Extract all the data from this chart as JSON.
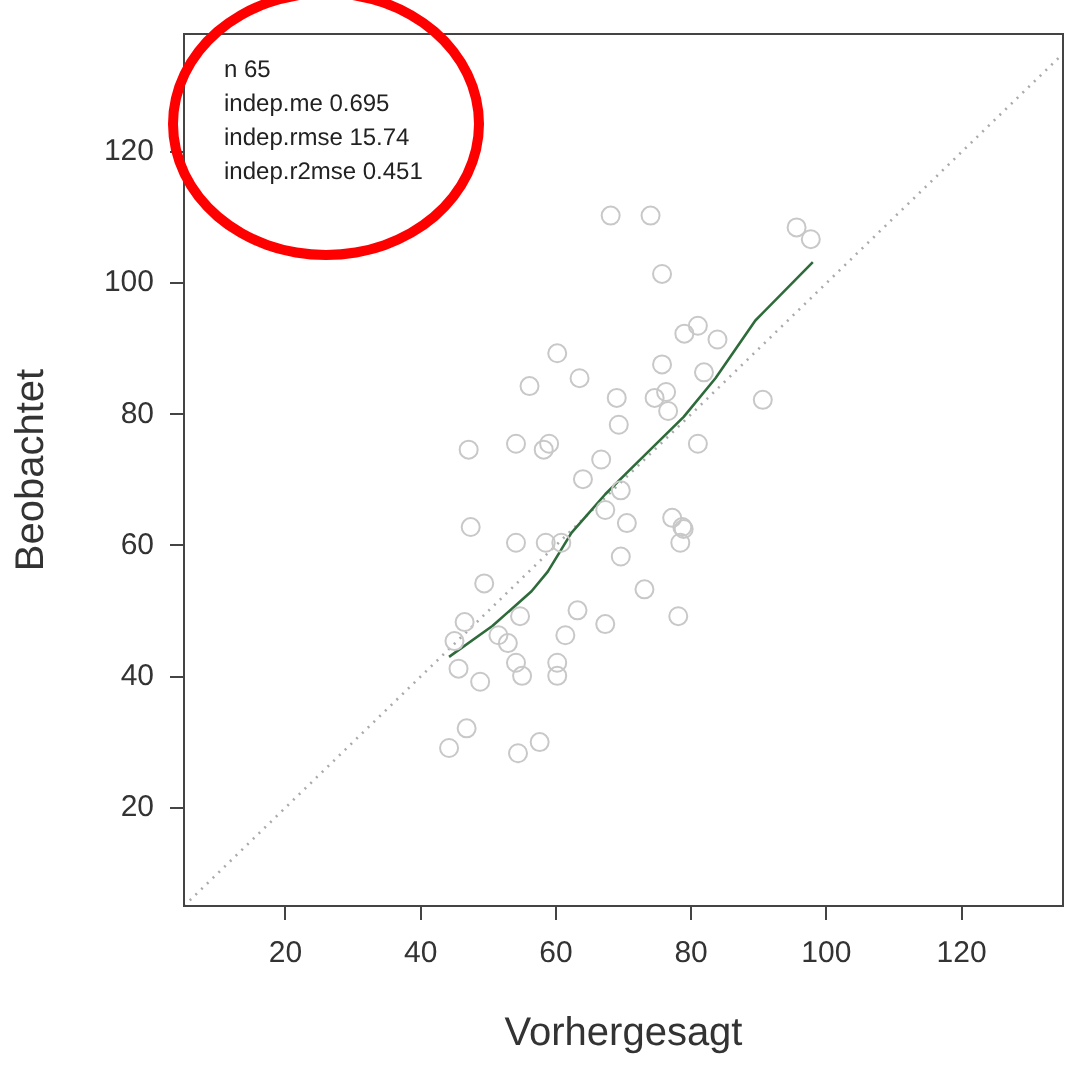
{
  "chart_data": {
    "type": "scatter",
    "xlabel": "Vorhergesagt",
    "ylabel": "Beobachtet",
    "annotations": [
      "n 65",
      "indep.me 0.695",
      "indep.rmse 15.74",
      "indep.r2mse 0.451"
    ],
    "xlim": [
      5,
      135
    ],
    "ylim": [
      5,
      138
    ],
    "xticks": [
      20,
      40,
      60,
      80,
      100,
      120
    ],
    "yticks": [
      20,
      40,
      60,
      80,
      100,
      120
    ],
    "grid": false,
    "legend": false,
    "series": [
      {
        "marker": "circle",
        "color": "#c8c8c8",
        "x": [
          68.1,
          74,
          95.6,
          97.7,
          75.7,
          79,
          81,
          83.9,
          60.2,
          75.7,
          81.9,
          56.1,
          63.5,
          69,
          74.6,
          76.3,
          76.6,
          90.6,
          69.3,
          47.1,
          54.1,
          58.2,
          59,
          81,
          66.7,
          64,
          69.6,
          70.5,
          77.2,
          78.7,
          47.4,
          67.3,
          54.1,
          58.5,
          60.8,
          78.9,
          78.4,
          69.6,
          49.4,
          73.1,
          54.7,
          63.2,
          46.5,
          67.3,
          78.1,
          61.4,
          45,
          51.5,
          52.9,
          45.6,
          54.1,
          55,
          60.2,
          60.2,
          48.8,
          46.8,
          44.2,
          57.6,
          54.4
        ],
        "values": [
          110.3,
          110.3,
          108.5,
          106.7,
          101.4,
          92.3,
          93.5,
          91.4,
          89.3,
          87.6,
          86.4,
          84.3,
          85.5,
          82.5,
          82.5,
          83.4,
          80.5,
          82.2,
          78.4,
          74.6,
          75.5,
          74.6,
          75.5,
          75.5,
          73.1,
          70.1,
          68.4,
          63.4,
          64.2,
          62.8,
          62.8,
          65.4,
          60.4,
          60.4,
          60.4,
          62.5,
          60.4,
          58.3,
          54.2,
          53.3,
          49.2,
          50.1,
          48.3,
          48,
          49.2,
          46.3,
          45.4,
          46.3,
          45.1,
          41.2,
          42.1,
          40.1,
          42.1,
          40.1,
          39.2,
          32.1,
          29.1,
          30,
          28.3
        ]
      },
      {
        "type": "line",
        "marker": "none",
        "line_style": "solid",
        "color": "#2e6b3a",
        "x": [
          44.2,
          50.6,
          56.4,
          58.8,
          62.3,
          67.3,
          71,
          78.9,
          83.6,
          89.5,
          98
        ],
        "values": [
          43,
          47.7,
          53,
          56,
          61.9,
          67.8,
          71.6,
          79.6,
          85.5,
          94.3,
          103.2
        ]
      },
      {
        "type": "line",
        "marker": "none",
        "line_style": "dotted",
        "color": "#aaaaaa",
        "x": [
          5,
          135
        ],
        "values": [
          5,
          135
        ]
      }
    ]
  }
}
